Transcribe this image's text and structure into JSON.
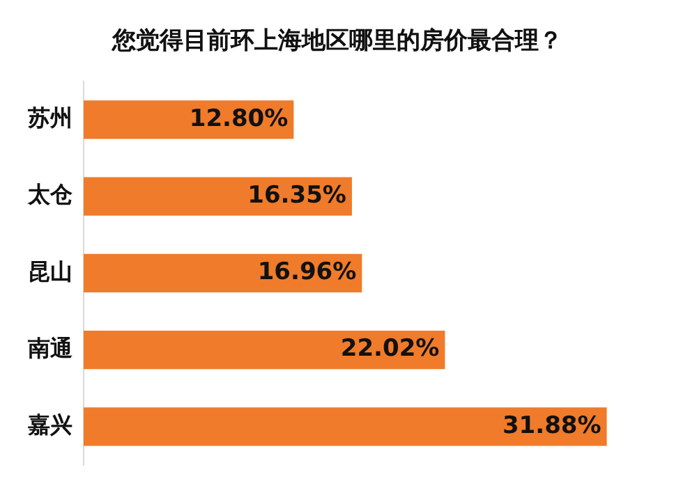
{
  "chart_data": {
    "type": "bar",
    "orientation": "horizontal",
    "title": "您觉得目前环上海地区哪里的房价最合理？",
    "categories": [
      "苏州",
      "太仓",
      "昆山",
      "南通",
      "嘉兴"
    ],
    "values": [
      12.8,
      16.35,
      16.96,
      22.02,
      31.88
    ],
    "value_labels": [
      "12.80%",
      "16.35%",
      "16.96%",
      "22.02%",
      "31.88%"
    ],
    "color": "#f07b2a",
    "tick_labels": "y",
    "grid": false,
    "legend": false
  }
}
